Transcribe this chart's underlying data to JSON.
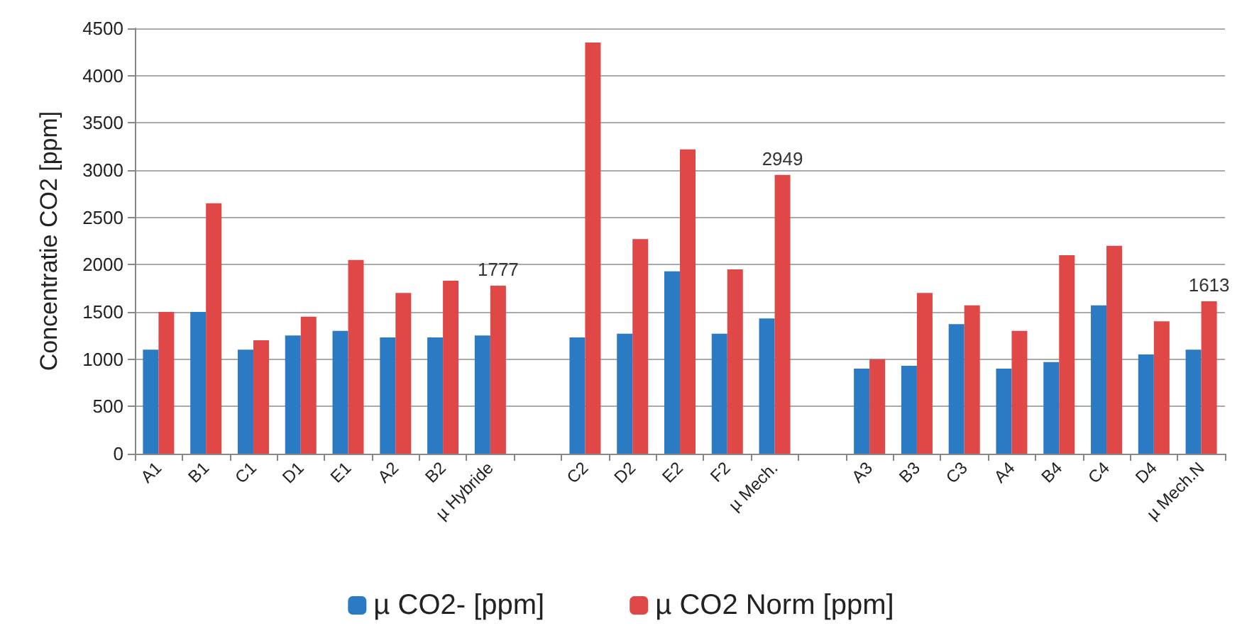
{
  "chart_data": {
    "type": "bar",
    "ylabel": "Concentratie CO2 [ppm]",
    "categories": [
      "A1",
      "B1",
      "C1",
      "D1",
      "E1",
      "A2",
      "B2",
      "µ Hybride",
      null,
      "C2",
      "D2",
      "E2",
      "F2",
      "µ Mech.",
      null,
      "A3",
      "B3",
      "C3",
      "A4",
      "B4",
      "C4",
      "D4",
      "µ Mech.N"
    ],
    "series": [
      {
        "name": "µ CO2- [ppm]",
        "color": "#2a7bc4",
        "values": [
          1100,
          1500,
          1100,
          1250,
          1300,
          1230,
          1230,
          1250,
          null,
          1230,
          1270,
          1930,
          1270,
          1430,
          null,
          900,
          930,
          1370,
          900,
          970,
          1570,
          1050,
          1100
        ]
      },
      {
        "name": "µ CO2 Norm [ppm]",
        "color": "#e04848",
        "values": [
          1500,
          2650,
          1200,
          1450,
          2050,
          1700,
          1830,
          1777,
          null,
          4350,
          2270,
          3220,
          1950,
          2949,
          null,
          1000,
          1700,
          1570,
          1300,
          2100,
          2200,
          1400,
          1613
        ],
        "value_labels": [
          null,
          null,
          null,
          null,
          null,
          null,
          null,
          "1777",
          null,
          null,
          null,
          null,
          null,
          "2949",
          null,
          null,
          null,
          null,
          null,
          null,
          null,
          null,
          "1613"
        ]
      }
    ],
    "ylim": [
      0,
      4500
    ],
    "yticks": [
      0,
      500,
      1000,
      1500,
      2000,
      2500,
      3000,
      3500,
      4000,
      4500
    ],
    "grid": "y",
    "legend": "bottom"
  }
}
